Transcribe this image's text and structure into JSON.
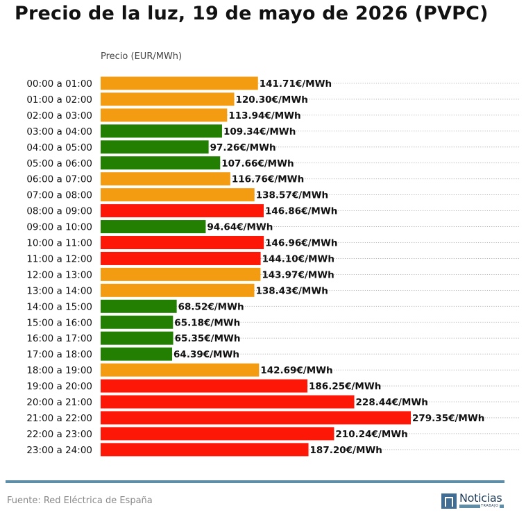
{
  "title": "Precio de la luz, 19 de mayo de 2026 (PVPC)",
  "source": "Fuente: Red Eléctrica de España",
  "logo": {
    "word": "Noticias",
    "sub": "TRABAJO"
  },
  "colors": {
    "high": "#fc1707",
    "mid": "#f39c12",
    "low": "#237f02",
    "grid": "#aaaaaa",
    "footer": "#5e8da8"
  },
  "chart_data": {
    "type": "bar",
    "orientation": "horizontal",
    "title": "Precio de la luz, 19 de mayo de 2026 (PVPC)",
    "xlabel": "Precio (EUR/MWh)",
    "ylabel": "",
    "value_suffix": "€/MWh",
    "grid": "dotted horizontal",
    "categories": [
      "00:00 a 01:00",
      "01:00 a 02:00",
      "02:00 a 03:00",
      "03:00 a 04:00",
      "04:00 a 05:00",
      "05:00 a 06:00",
      "06:00 a 07:00",
      "07:00 a 08:00",
      "08:00 a 09:00",
      "09:00 a 10:00",
      "10:00 a 11:00",
      "11:00 a 12:00",
      "12:00 a 13:00",
      "13:00 a 14:00",
      "14:00 a 15:00",
      "15:00 a 16:00",
      "16:00 a 17:00",
      "17:00 a 18:00",
      "18:00 a 19:00",
      "19:00 a 20:00",
      "20:00 a 21:00",
      "21:00 a 22:00",
      "22:00 a 23:00",
      "23:00 a 24:00"
    ],
    "values": [
      141.71,
      120.3,
      113.94,
      109.34,
      97.26,
      107.66,
      116.76,
      138.57,
      146.86,
      94.64,
      146.96,
      144.1,
      143.97,
      138.43,
      68.52,
      65.18,
      65.35,
      64.39,
      142.69,
      186.25,
      228.44,
      279.35,
      210.24,
      187.2
    ],
    "levels": [
      "mid",
      "mid",
      "mid",
      "low",
      "low",
      "low",
      "mid",
      "mid",
      "high",
      "low",
      "high",
      "high",
      "mid",
      "mid",
      "low",
      "low",
      "low",
      "low",
      "mid",
      "high",
      "high",
      "high",
      "high",
      "high"
    ]
  }
}
